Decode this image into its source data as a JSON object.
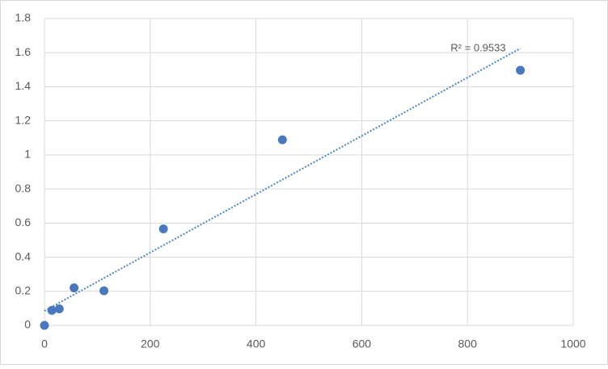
{
  "chart_data": {
    "type": "scatter",
    "series": [
      {
        "color": "#4a78bf",
        "x": [
          0,
          14,
          28,
          56,
          112.5,
          225,
          450,
          900
        ],
        "values": [
          0,
          0.088,
          0.097,
          0.22,
          0.203,
          0.566,
          1.089,
          1.497
        ]
      }
    ],
    "trendline": {
      "color": "#4a86c5",
      "x": [
        0,
        900
      ],
      "y": [
        0.085,
        1.625
      ],
      "label": "R² = 0.9533"
    },
    "xlim": [
      0,
      1000
    ],
    "xticks": [
      0,
      200,
      400,
      600,
      800,
      1000
    ],
    "ylim": [
      0,
      1.8
    ],
    "yticks": [
      0,
      0.2,
      0.4,
      0.6,
      0.8,
      1,
      1.2,
      1.4,
      1.6,
      1.8
    ],
    "grid": true
  }
}
